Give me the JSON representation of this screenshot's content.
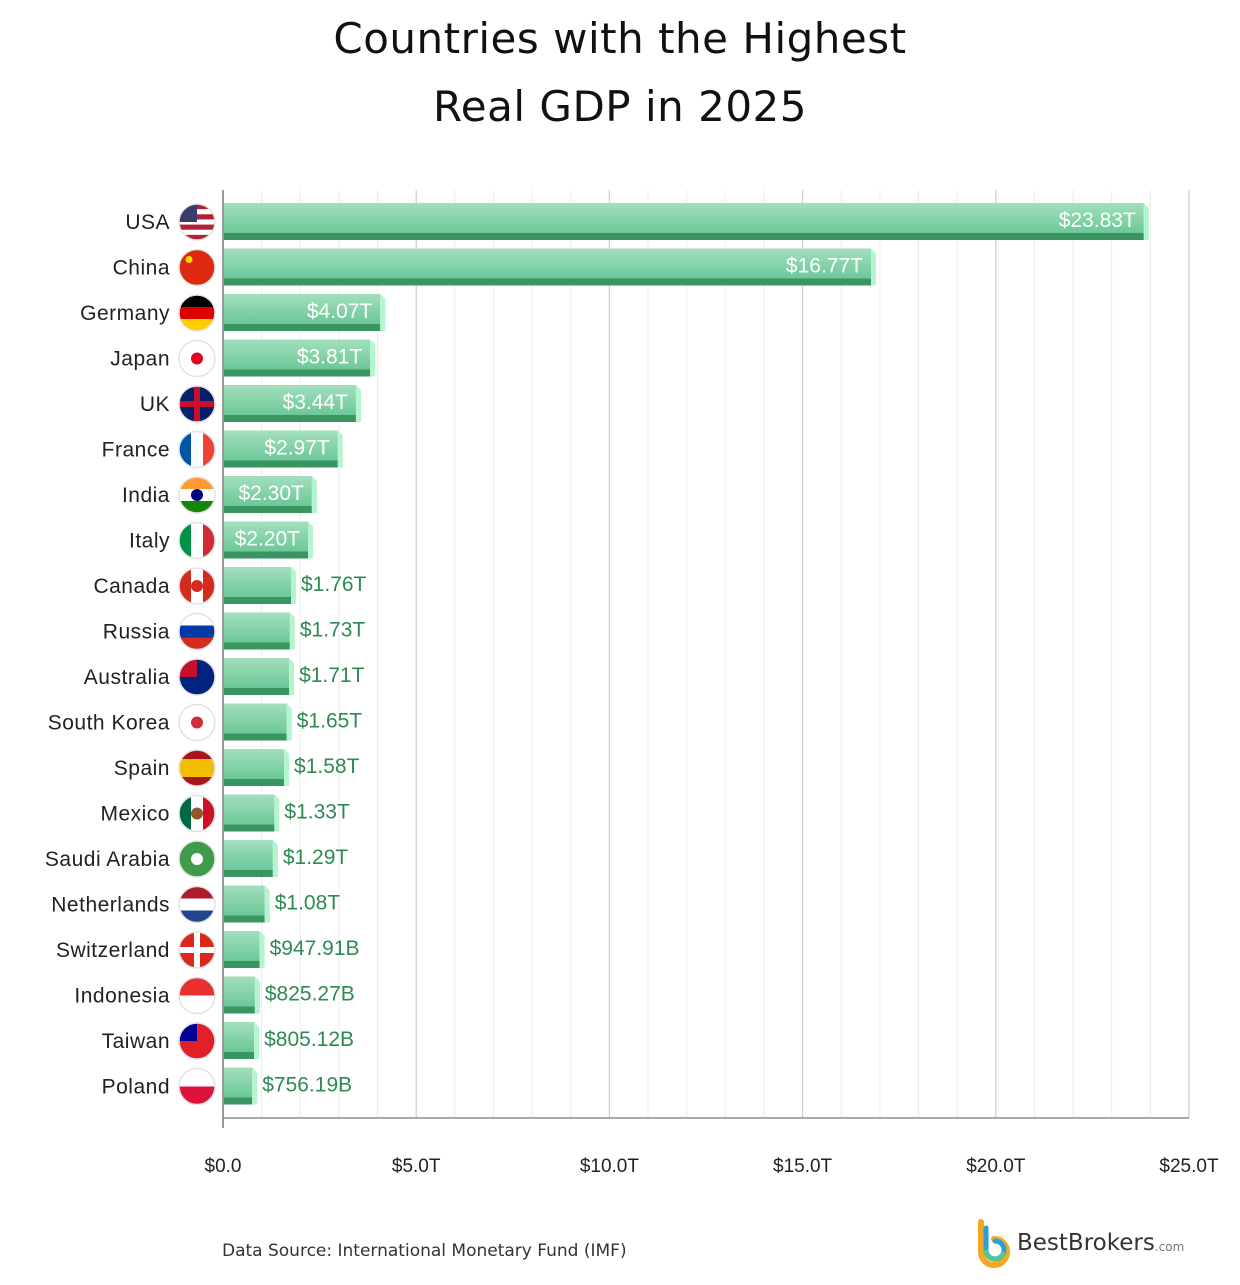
{
  "chart_data": {
    "type": "bar",
    "orientation": "horizontal",
    "title_lines": [
      "Countries with the Highest",
      "Real GDP in 2025"
    ],
    "xlabel": "",
    "ylabel": "",
    "xlim": [
      0,
      25
    ],
    "x_ticks": [
      0,
      5,
      10,
      15,
      20,
      25
    ],
    "x_tick_labels": [
      "$0.0",
      "$5.0T",
      "$10.0T",
      "$15.0T",
      "$20.0T",
      "$25.0T"
    ],
    "minor_grid_step": 1,
    "grid": true,
    "categories": [
      "USA",
      "China",
      "Germany",
      "Japan",
      "UK",
      "France",
      "India",
      "Italy",
      "Canada",
      "Russia",
      "Australia",
      "South Korea",
      "Spain",
      "Mexico",
      "Saudi Arabia",
      "Netherlands",
      "Switzerland",
      "Indonesia",
      "Taiwan",
      "Poland"
    ],
    "values": [
      23.83,
      16.77,
      4.07,
      3.81,
      3.44,
      2.97,
      2.3,
      2.2,
      1.76,
      1.73,
      1.71,
      1.65,
      1.58,
      1.33,
      1.29,
      1.08,
      0.94791,
      0.82527,
      0.80512,
      0.75619
    ],
    "data_labels": [
      "$23.83T",
      "$16.77T",
      "$4.07T",
      "$3.81T",
      "$3.44T",
      "$2.97T",
      "$2.30T",
      "$2.20T",
      "$1.76T",
      "$1.73T",
      "$1.71T",
      "$1.65T",
      "$1.58T",
      "$1.33T",
      "$1.29T",
      "$1.08T",
      "$947.91B",
      "$825.27B",
      "$805.12B",
      "$756.19B"
    ],
    "colors": {
      "bar_top": "#a3dfbe",
      "bar_bottom": "#6cc897",
      "bar_base": "#3a9562",
      "bar_side": "#b4f5cf",
      "outside_label": "#2e8a52",
      "inside_label": "#ffffff"
    },
    "flags": [
      {
        "dir": "h",
        "colors": [
          "#b22234",
          "#ffffff",
          "#b22234",
          "#ffffff",
          "#b22234",
          "#ffffff",
          "#b22234"
        ],
        "canton": "#3c3b6e"
      },
      {
        "dir": "h",
        "colors": [
          "#de2910"
        ],
        "star": "#ffde00"
      },
      {
        "dir": "h",
        "colors": [
          "#000000",
          "#dd0000",
          "#ffce00"
        ]
      },
      {
        "dir": "h",
        "colors": [
          "#ffffff"
        ],
        "dot": "#e60026"
      },
      {
        "dir": "h",
        "colors": [
          "#012169"
        ],
        "cross": "#c8102e"
      },
      {
        "dir": "v",
        "colors": [
          "#0055a4",
          "#ffffff",
          "#ef4135"
        ]
      },
      {
        "dir": "h",
        "colors": [
          "#ff9933",
          "#ffffff",
          "#138808"
        ],
        "dot": "#000080"
      },
      {
        "dir": "v",
        "colors": [
          "#009246",
          "#ffffff",
          "#ce2b37"
        ]
      },
      {
        "dir": "v",
        "colors": [
          "#d52b1e",
          "#ffffff",
          "#d52b1e"
        ],
        "dot": "#d52b1e"
      },
      {
        "dir": "h",
        "colors": [
          "#ffffff",
          "#0039a6",
          "#d52b1e"
        ]
      },
      {
        "dir": "h",
        "colors": [
          "#00247d"
        ],
        "canton": "#c8102e"
      },
      {
        "dir": "h",
        "colors": [
          "#ffffff"
        ],
        "dot": "#cd2e3a"
      },
      {
        "dir": "h",
        "colors": [
          "#aa151b",
          "#f1bf00",
          "#f1bf00",
          "#aa151b"
        ]
      },
      {
        "dir": "v",
        "colors": [
          "#006847",
          "#ffffff",
          "#ce1126"
        ],
        "dot": "#8b5a2b"
      },
      {
        "dir": "h",
        "colors": [
          "#3f9a4a"
        ],
        "dot": "#ffffff"
      },
      {
        "dir": "h",
        "colors": [
          "#ae1c28",
          "#ffffff",
          "#21468b"
        ]
      },
      {
        "dir": "h",
        "colors": [
          "#da291c"
        ],
        "cross": "#ffffff"
      },
      {
        "dir": "h",
        "colors": [
          "#e8312f",
          "#ffffff"
        ]
      },
      {
        "dir": "h",
        "colors": [
          "#e22027"
        ],
        "canton": "#000095"
      },
      {
        "dir": "h",
        "colors": [
          "#ffffff",
          "#dc143c"
        ]
      }
    ]
  },
  "footer": {
    "source": "Data Source: International Monetary Fund (IMF)",
    "logo_name": "BestBrokers",
    "logo_suffix": ".com"
  }
}
